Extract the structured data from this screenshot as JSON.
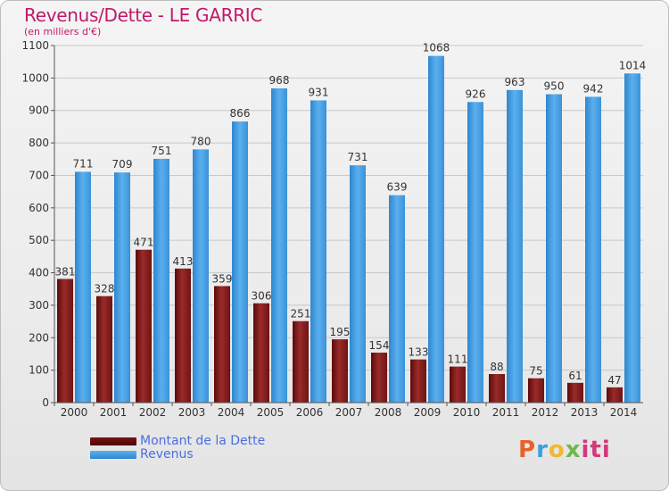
{
  "header": {
    "title": "Revenus/Dette - LE GARRIC",
    "subtitle": "(en milliers d'€)"
  },
  "chart_data": {
    "type": "bar",
    "title": "Revenus/Dette - LE GARRIC",
    "subtitle": "(en milliers d'€)",
    "xlabel": "",
    "ylabel": "",
    "ylim": [
      0,
      1100
    ],
    "yticks": [
      0,
      100,
      200,
      300,
      400,
      500,
      600,
      700,
      800,
      900,
      1000,
      1100
    ],
    "grid": true,
    "categories": [
      "2000",
      "2001",
      "2002",
      "2003",
      "2004",
      "2005",
      "2006",
      "2007",
      "2008",
      "2009",
      "2010",
      "2011",
      "2012",
      "2013",
      "2014"
    ],
    "series": [
      {
        "name": "Montant de la Dette",
        "color": "#8b1f1f",
        "values": [
          381,
          328,
          471,
          413,
          359,
          306,
          251,
          195,
          154,
          133,
          111,
          88,
          75,
          61,
          47
        ]
      },
      {
        "name": "Revenus",
        "color": "#4aa3e8",
        "values": [
          711,
          709,
          751,
          780,
          866,
          968,
          931,
          731,
          639,
          1068,
          926,
          963,
          950,
          942,
          1014
        ]
      }
    ]
  },
  "legend": {
    "items": [
      {
        "label": "Montant de la Dette",
        "color": "#6b0f0f"
      },
      {
        "label": "Revenus",
        "color": "#3f97e0"
      }
    ]
  },
  "logo": {
    "l1": "P",
    "l2": "r",
    "l3": "o",
    "l4": "x",
    "l5": "iti"
  }
}
